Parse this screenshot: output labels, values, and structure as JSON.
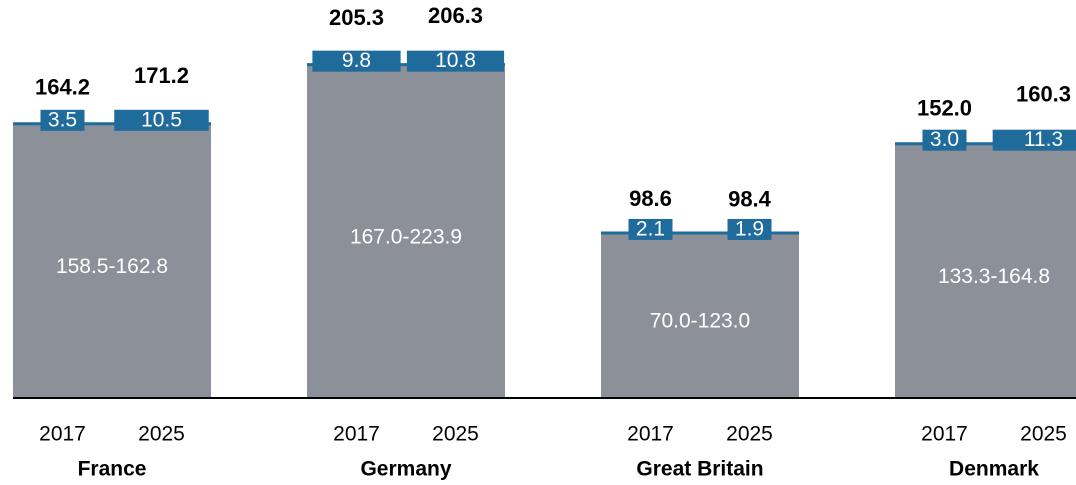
{
  "chart_data": {
    "type": "range-bar",
    "groups": [
      {
        "name": "France",
        "range": "158.5-162.8",
        "base": 160.7,
        "years": [
          {
            "year": "2017",
            "total": 164.2,
            "change": 3.5
          },
          {
            "year": "2025",
            "total": 171.2,
            "change": 10.5
          }
        ]
      },
      {
        "name": "Germany",
        "range": "167.0-223.9",
        "base": 195.5,
        "years": [
          {
            "year": "2017",
            "total": 205.3,
            "change": 9.8
          },
          {
            "year": "2025",
            "total": 206.3,
            "change": 10.8
          }
        ]
      },
      {
        "name": "Great Britain",
        "range": "70.0-123.0",
        "base": 96.5,
        "years": [
          {
            "year": "2017",
            "total": 98.6,
            "change": 2.1
          },
          {
            "year": "2025",
            "total": 98.4,
            "change": 1.9
          }
        ]
      },
      {
        "name": "Denmark",
        "range": "133.3-164.8",
        "base": 149,
        "years": [
          {
            "year": "2017",
            "total": 152,
            "total_label": "152.0",
            "change": 3,
            "change_label": "3.0"
          },
          {
            "year": "2025",
            "total": 160.3,
            "change": 11.3
          }
        ]
      }
    ],
    "ylim": [
      0,
      230
    ],
    "base_color": "#8c9199",
    "change_color": "#1f6b9c"
  }
}
